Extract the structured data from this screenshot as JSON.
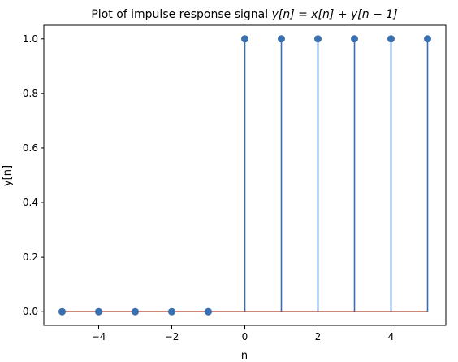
{
  "chart_data": {
    "type": "stem",
    "title": "Plot of impulse response signal y[n] = x[n] + y[n − 1]",
    "title_parts": {
      "prefix": "Plot of impulse response signal ",
      "math": "y[n] = x[n] + y[n − 1]"
    },
    "xlabel": "n",
    "ylabel": "y[n]",
    "x": [
      -5,
      -4,
      -3,
      -2,
      -1,
      0,
      1,
      2,
      3,
      4,
      5
    ],
    "y": [
      0,
      0,
      0,
      0,
      0,
      1,
      1,
      1,
      1,
      1,
      1
    ],
    "xlim": [
      -5.5,
      5.5
    ],
    "ylim": [
      -0.05,
      1.05
    ],
    "xticks": [
      -4,
      -2,
      0,
      2,
      4
    ],
    "yticks": [
      0.0,
      0.2,
      0.4,
      0.6,
      0.8,
      1.0
    ],
    "xtick_labels": [
      "−4",
      "−2",
      "0",
      "2",
      "4"
    ],
    "ytick_labels": [
      "0.0",
      "0.2",
      "0.4",
      "0.6",
      "0.8",
      "1.0"
    ],
    "grid": false,
    "colors": {
      "stem": "#3a6fb0",
      "marker": "#3a6fb0",
      "baseline": "#c0392b",
      "axes": "#000000"
    }
  }
}
